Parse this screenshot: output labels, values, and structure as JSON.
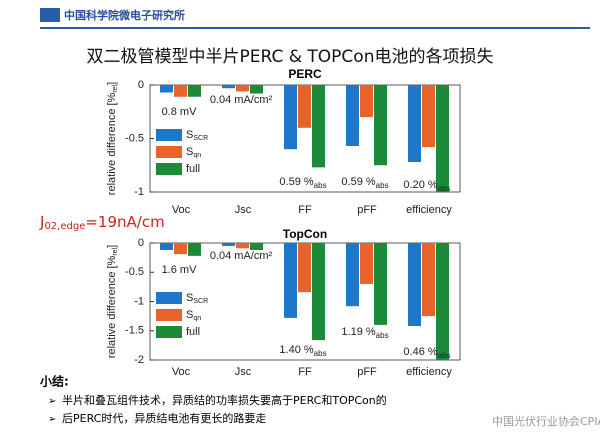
{
  "header": {
    "institute": "中国科学院微电子研究所",
    "title": "双二极管模型中半片PERC & TOPCon电池的各项损失"
  },
  "note": {
    "text": "J",
    "sub": "02,edge",
    "rest": "=19nA/cm"
  },
  "summary": {
    "heading": "小结:",
    "bullets": [
      "半片和叠瓦组件技术，异质结的功率损失要高于PERC和TOPCon的",
      "后PERC时代，异质结电池有更长的路要走"
    ]
  },
  "watermark": "中国光伏行业协会CPIA",
  "chart_data": [
    {
      "type": "bar",
      "title": "PERC",
      "ylabel": "relative difference [%",
      "ylabel_sub": "rel",
      "ylabel_end": "]",
      "categories": [
        "Voc",
        "Jsc",
        "FF",
        "pFF",
        "efficiency"
      ],
      "ylim": [
        -1,
        0
      ],
      "yticks": [
        0,
        -0.5,
        -1
      ],
      "series": [
        {
          "name": "S",
          "name_sub": "SCR",
          "color": "#1f77c9",
          "values": [
            -0.07,
            -0.03,
            -0.6,
            -0.57,
            -0.72
          ]
        },
        {
          "name": "S",
          "name_sub": "qn",
          "color": "#e8622a",
          "values": [
            -0.11,
            -0.06,
            -0.4,
            -0.3,
            -0.58
          ]
        },
        {
          "name": "full",
          "color": "#1d8a3a",
          "values": [
            -0.11,
            -0.08,
            -0.77,
            -0.75,
            -1
          ]
        }
      ],
      "annotations": [
        {
          "text": "0.8 mV"
        },
        {
          "text": "0.04 mA/cm²"
        },
        {
          "text": "0.59 %",
          "sub": "abs"
        },
        {
          "text": "0.59 %",
          "sub": "abs"
        },
        {
          "text": "0.20 %",
          "sub": "abs"
        }
      ]
    },
    {
      "type": "bar",
      "title": "TopCon",
      "ylabel": "relative difference [%",
      "ylabel_sub": "rel",
      "ylabel_end": "]",
      "categories": [
        "Voc",
        "Jsc",
        "FF",
        "pFF",
        "efficiency"
      ],
      "ylim": [
        -2,
        0
      ],
      "yticks": [
        0,
        -0.5,
        -1,
        -1.5,
        -2
      ],
      "series": [
        {
          "name": "S",
          "name_sub": "SCR",
          "color": "#1f77c9",
          "values": [
            -0.12,
            -0.05,
            -1.28,
            -1.08,
            -1.42
          ]
        },
        {
          "name": "S",
          "name_sub": "qn",
          "color": "#e8622a",
          "values": [
            -0.19,
            -0.09,
            -0.84,
            -0.7,
            -1.25
          ]
        },
        {
          "name": "full",
          "color": "#1d8a3a",
          "values": [
            -0.22,
            -0.12,
            -1.66,
            -1.4,
            -2
          ]
        }
      ],
      "annotations": [
        {
          "text": "1.6 mV"
        },
        {
          "text": "0.04 mA/cm²"
        },
        {
          "text": "1.40 %",
          "sub": "abs"
        },
        {
          "text": "1.19 %",
          "sub": "abs"
        },
        {
          "text": "0.46 %",
          "sub": "abs"
        }
      ]
    }
  ]
}
